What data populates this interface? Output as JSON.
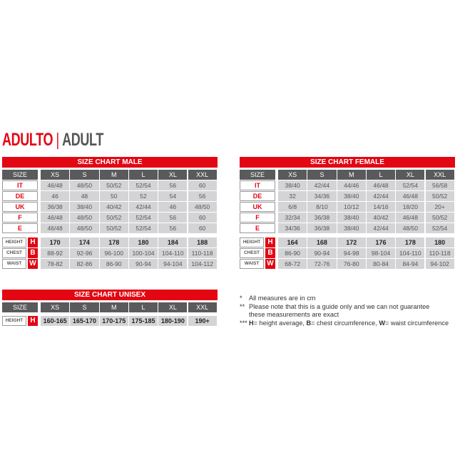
{
  "title": {
    "red": "ADULTO",
    "separator": "|",
    "gray": "ADULT"
  },
  "male": {
    "title": "SIZE CHART MALE",
    "size_label": "SIZE",
    "sizes": [
      "XS",
      "S",
      "M",
      "L",
      "XL",
      "XXL"
    ],
    "rows": [
      {
        "label": "IT",
        "values": [
          "46/48",
          "48/50",
          "50/52",
          "52/54",
          "56",
          "60"
        ]
      },
      {
        "label": "DE",
        "values": [
          "46",
          "48",
          "50",
          "52",
          "54",
          "56"
        ]
      },
      {
        "label": "UK",
        "values": [
          "36/38",
          "38/40",
          "40/42",
          "42/44",
          "46",
          "48/50"
        ]
      },
      {
        "label": "F",
        "values": [
          "46/48",
          "48/50",
          "50/52",
          "52/54",
          "56",
          "60"
        ]
      },
      {
        "label": "E",
        "values": [
          "46/48",
          "48/50",
          "50/52",
          "52/54",
          "56",
          "60"
        ]
      }
    ],
    "measures": [
      {
        "label": "HEIGHT",
        "letter": "H",
        "bold": true,
        "values": [
          "170",
          "174",
          "178",
          "180",
          "184",
          "188"
        ]
      },
      {
        "label": "CHEST",
        "letter": "B",
        "values": [
          "88-92",
          "92-96",
          "96-100",
          "100-104",
          "104-110",
          "110-118"
        ]
      },
      {
        "label": "WAIST",
        "letter": "W",
        "values": [
          "78-82",
          "82-86",
          "86-90",
          "90-94",
          "94-104",
          "104-112"
        ]
      }
    ]
  },
  "female": {
    "title": "SIZE CHART FEMALE",
    "size_label": "SIZE",
    "sizes": [
      "XS",
      "S",
      "M",
      "L",
      "XL",
      "XXL"
    ],
    "rows": [
      {
        "label": "IT",
        "values": [
          "38/40",
          "42/44",
          "44/46",
          "46/48",
          "52/54",
          "56/58"
        ]
      },
      {
        "label": "DE",
        "values": [
          "32",
          "34/36",
          "38/40",
          "42/44",
          "46/48",
          "50/52"
        ]
      },
      {
        "label": "UK",
        "values": [
          "6/8",
          "8/10",
          "10/12",
          "14/16",
          "18/20",
          "20+"
        ]
      },
      {
        "label": "F",
        "values": [
          "32/34",
          "36/38",
          "38/40",
          "40/42",
          "46/48",
          "50/52"
        ]
      },
      {
        "label": "E",
        "values": [
          "34/36",
          "36/38",
          "38/40",
          "42/44",
          "48/50",
          "52/54"
        ]
      }
    ],
    "measures": [
      {
        "label": "HEIGHT",
        "letter": "H",
        "bold": true,
        "values": [
          "164",
          "168",
          "172",
          "176",
          "178",
          "180"
        ]
      },
      {
        "label": "CHEST",
        "letter": "B",
        "values": [
          "86-90",
          "90-94",
          "94-98",
          "98-104",
          "104-110",
          "110-118"
        ]
      },
      {
        "label": "WAIST",
        "letter": "W",
        "values": [
          "68-72",
          "72-76",
          "76-80",
          "80-84",
          "84-94",
          "94-102"
        ]
      }
    ]
  },
  "unisex": {
    "title": "SIZE CHART UNISEX",
    "size_label": "SIZE",
    "sizes": [
      "XS",
      "S",
      "M",
      "L",
      "XL",
      "XXL"
    ],
    "rows": [],
    "measures": [
      {
        "label": "HEIGHT",
        "letter": "H",
        "bold": true,
        "values": [
          "160-165",
          "165-170",
          "170-175",
          "175-185",
          "180-190",
          "190+"
        ]
      }
    ]
  },
  "notes": {
    "n1_mark": "*",
    "n1": "All measures are in cm",
    "n2_mark": "**",
    "n2a": "Please note that this is a guide only and we can not guarantee",
    "n2b": "these measurements are exact",
    "n3_mark": "***",
    "n3_h": "H",
    "n3_h_text": "= height average, ",
    "n3_b": "B",
    "n3_b_text": "= chest circumference, ",
    "n3_w": "W",
    "n3_w_text": "= waist circumference"
  }
}
